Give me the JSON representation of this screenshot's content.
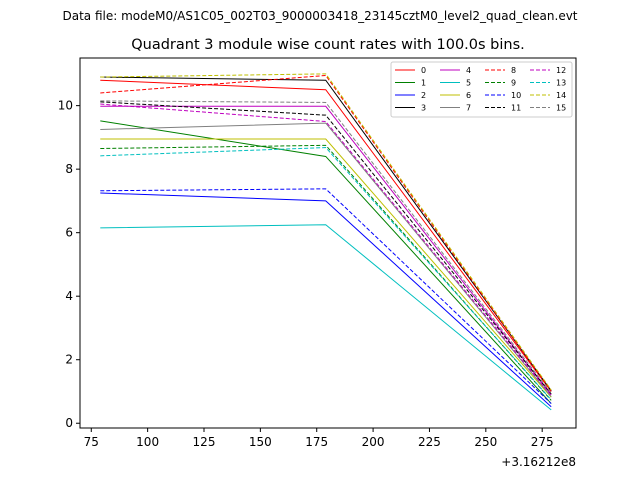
{
  "chart_data": {
    "type": "line",
    "suptitle": "Data file: modeM0/AS1C05_002T03_9000003418_23145cztM0_level2_quad_clean.evt",
    "title": "Quadrant 3 module wise count rates with 100.0s bins.",
    "xlabel": "",
    "ylabel": "",
    "x_offset_label": "+3.16212e8",
    "x": [
      79,
      179,
      279
    ],
    "xlim": [
      70,
      290
    ],
    "ylim": [
      -0.15,
      11.5
    ],
    "xticks": [
      "75",
      "100",
      "125",
      "150",
      "175",
      "200",
      "225",
      "250",
      "275"
    ],
    "xtick_values": [
      75,
      100,
      125,
      150,
      175,
      200,
      225,
      250,
      275
    ],
    "yticks": [
      "0",
      "2",
      "4",
      "6",
      "8",
      "10"
    ],
    "ytick_values": [
      0,
      2,
      4,
      6,
      8,
      10
    ],
    "legend_position": "top-right",
    "series": [
      {
        "name": "0",
        "color": "#ff0000",
        "dash": "solid",
        "values": [
          10.8,
          10.5,
          1.0
        ]
      },
      {
        "name": "1",
        "color": "#008000",
        "dash": "solid",
        "values": [
          9.52,
          8.4,
          0.62
        ]
      },
      {
        "name": "2",
        "color": "#0000ff",
        "dash": "solid",
        "values": [
          7.25,
          7.0,
          0.52
        ]
      },
      {
        "name": "3",
        "color": "#000000",
        "dash": "solid",
        "values": [
          10.9,
          10.8,
          1.02
        ]
      },
      {
        "name": "4",
        "color": "#bf00bf",
        "dash": "solid",
        "values": [
          9.98,
          9.98,
          0.9
        ]
      },
      {
        "name": "5",
        "color": "#00bfbf",
        "dash": "solid",
        "values": [
          6.15,
          6.25,
          0.42
        ]
      },
      {
        "name": "6",
        "color": "#bfbf00",
        "dash": "solid",
        "values": [
          8.95,
          8.95,
          0.82
        ]
      },
      {
        "name": "7",
        "color": "#808080",
        "dash": "solid",
        "values": [
          9.25,
          9.45,
          0.84
        ]
      },
      {
        "name": "8",
        "color": "#ff0000",
        "dash": "dashed",
        "values": [
          10.4,
          10.95,
          1.0
        ]
      },
      {
        "name": "9",
        "color": "#008000",
        "dash": "dashed",
        "values": [
          8.65,
          8.75,
          0.72
        ]
      },
      {
        "name": "10",
        "color": "#0000ff",
        "dash": "dashed",
        "values": [
          7.32,
          7.38,
          0.62
        ]
      },
      {
        "name": "11",
        "color": "#000000",
        "dash": "dashed",
        "values": [
          10.12,
          9.7,
          0.92
        ]
      },
      {
        "name": "12",
        "color": "#bf00bf",
        "dash": "dashed",
        "values": [
          10.05,
          9.5,
          0.88
        ]
      },
      {
        "name": "13",
        "color": "#00bfbf",
        "dash": "dashed",
        "values": [
          8.42,
          8.68,
          0.74
        ]
      },
      {
        "name": "14",
        "color": "#bfbf00",
        "dash": "dashed",
        "values": [
          10.9,
          11.0,
          1.05
        ]
      },
      {
        "name": "15",
        "color": "#808080",
        "dash": "dashed",
        "values": [
          10.15,
          10.1,
          0.95
        ]
      }
    ]
  }
}
